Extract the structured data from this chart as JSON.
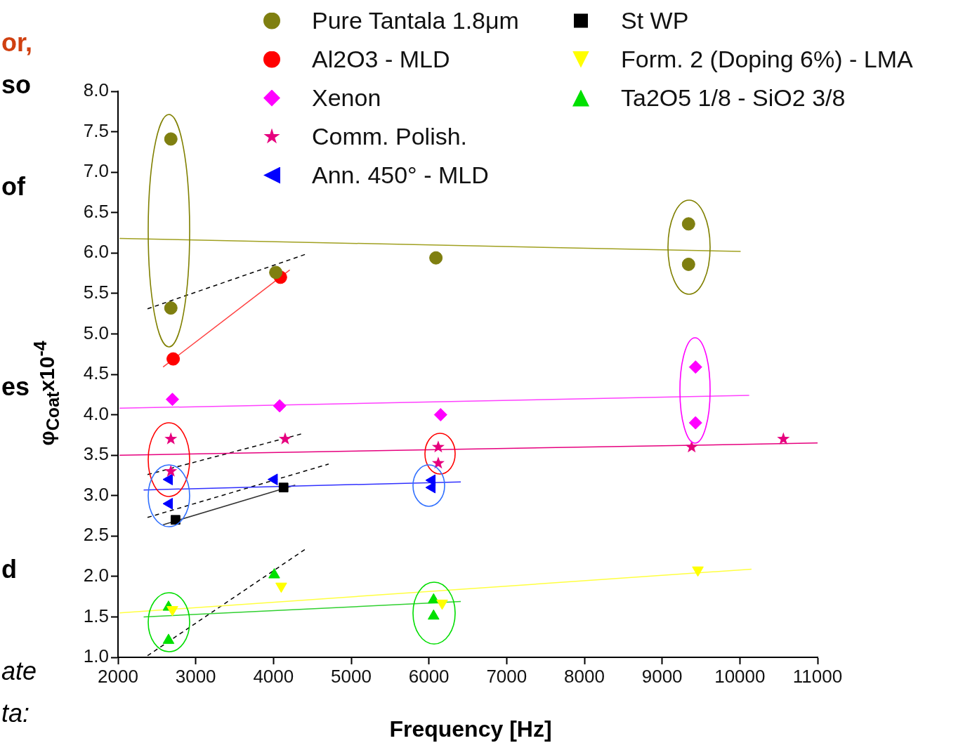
{
  "chart_data": {
    "type": "scatter",
    "xlabel": "Frequency [Hz]",
    "ylabel": "φ$_{Coat}$x10$^{-4}$",
    "xlim": [
      2000,
      11000
    ],
    "xticks": [
      2000,
      3000,
      4000,
      5000,
      6000,
      7000,
      8000,
      9000,
      10000,
      11000
    ],
    "ylim": [
      1,
      8
    ],
    "yticks": [
      {
        "value": 1,
        "label": "1.0"
      },
      {
        "value": 1.5,
        "label": "1.5"
      },
      {
        "value": 2,
        "label": "2.0"
      },
      {
        "value": 2.5,
        "label": "2.5"
      },
      {
        "value": 3,
        "label": "3.0"
      },
      {
        "value": 3.5,
        "label": "3.5"
      },
      {
        "value": 4,
        "label": "4.0"
      },
      {
        "value": 4.5,
        "label": "4.5"
      },
      {
        "value": 5,
        "label": "5.0"
      },
      {
        "value": 5.5,
        "label": "5.5"
      },
      {
        "value": 6,
        "label": "6.0"
      },
      {
        "value": 6.5,
        "label": "6.5"
      },
      {
        "value": 7,
        "label": "7.0"
      },
      {
        "value": 7.5,
        "label": "7.5"
      },
      {
        "value": 8,
        "label": "8.0"
      }
    ],
    "grid": false,
    "legend": "top",
    "annotations": [
      "or,",
      "so",
      "of",
      "es",
      "d",
      "ate",
      "ta:"
    ],
    "series": [
      {
        "name": "Pure Tantala 1.8μm",
        "marker": "circle",
        "color": "#7f7f10",
        "x": [
          2680,
          2680,
          4030,
          6090,
          9340,
          9340
        ],
        "values": [
          7.41,
          5.32,
          5.76,
          5.94,
          6.36,
          5.86
        ]
      },
      {
        "name": "Al2O3 - MLD",
        "marker": "circle",
        "color": "#ff0000",
        "x": [
          2710,
          4090
        ],
        "values": [
          4.69,
          5.7
        ]
      },
      {
        "name": "Xenon",
        "marker": "diamond",
        "color": "#ff00ff",
        "x": [
          2700,
          4080,
          6150,
          9430,
          9430
        ],
        "values": [
          4.19,
          4.11,
          4.0,
          4.59,
          3.9
        ]
      },
      {
        "name": "Comm. Polish.",
        "marker": "star",
        "color": "#e6007e",
        "x": [
          2680,
          2680,
          4150,
          6120,
          6120,
          9380,
          10560
        ],
        "values": [
          3.7,
          3.3,
          3.7,
          3.6,
          3.4,
          3.6,
          3.7
        ]
      },
      {
        "name": "Ann. 450° - MLD",
        "marker": "triangle-left",
        "color": "#0000ff",
        "x": [
          2660,
          2660,
          4010,
          6040,
          6040
        ],
        "values": [
          3.2,
          2.9,
          3.2,
          3.19,
          3.1
        ]
      },
      {
        "name": "St WP",
        "marker": "square",
        "color": "#000000",
        "x": [
          2740,
          4130
        ],
        "values": [
          2.7,
          3.1
        ]
      },
      {
        "name": "Form. 2 (Doping 6%) - LMA",
        "marker": "triangle-down",
        "color": "#ffff00",
        "x": [
          2700,
          4100,
          6170,
          9460
        ],
        "values": [
          1.59,
          1.88,
          1.67,
          2.08
        ]
      },
      {
        "name": "Ta2O5 1/8 - SiO2 3/8",
        "marker": "triangle",
        "color": "#00e000",
        "x": [
          2650,
          2650,
          4010,
          6060,
          6060
        ],
        "values": [
          1.62,
          1.21,
          2.02,
          1.71,
          1.51
        ]
      },
      {
        "type": "line",
        "marker": "none",
        "line_style": "solid",
        "color": "#a0a020",
        "x": [
          2020,
          10010
        ],
        "values": [
          6.18,
          6.02
        ]
      },
      {
        "type": "line",
        "marker": "none",
        "line_style": "solid",
        "color": "#ff4040",
        "x": [
          2580,
          4210
        ],
        "values": [
          4.59,
          5.79
        ]
      },
      {
        "type": "line",
        "marker": "none",
        "line_style": "solid",
        "color": "#ff40ff",
        "x": [
          2020,
          10120
        ],
        "values": [
          4.08,
          4.24
        ]
      },
      {
        "type": "line",
        "marker": "none",
        "line_style": "solid",
        "color": "#e6007e",
        "x": [
          2020,
          11000
        ],
        "values": [
          3.5,
          3.65
        ]
      },
      {
        "type": "line",
        "marker": "none",
        "line_style": "solid",
        "color": "#3030ff",
        "x": [
          2330,
          6410
        ],
        "values": [
          3.07,
          3.17
        ]
      },
      {
        "type": "line",
        "marker": "none",
        "line_style": "solid",
        "color": "#333333",
        "x": [
          2580,
          4280
        ],
        "values": [
          2.64,
          3.13
        ]
      },
      {
        "type": "line",
        "marker": "none",
        "line_style": "solid",
        "color": "#ffff40",
        "x": [
          2020,
          10150
        ],
        "values": [
          1.55,
          2.09
        ]
      },
      {
        "type": "line",
        "marker": "none",
        "line_style": "solid",
        "color": "#30d030",
        "x": [
          2330,
          6410
        ],
        "values": [
          1.5,
          1.69
        ]
      },
      {
        "type": "line",
        "marker": "none",
        "line_style": "dashed",
        "color": "#000000",
        "x": [
          2380,
          4430
        ],
        "values": [
          5.31,
          5.99
        ]
      },
      {
        "type": "line",
        "marker": "none",
        "line_style": "dashed",
        "color": "#000000",
        "x": [
          2380,
          4390
        ],
        "values": [
          3.26,
          3.77
        ]
      },
      {
        "type": "line",
        "marker": "none",
        "line_style": "dashed",
        "color": "#000000",
        "x": [
          2380,
          4710
        ],
        "values": [
          2.73,
          3.39
        ]
      },
      {
        "type": "line",
        "marker": "none",
        "line_style": "dashed",
        "color": "#000000",
        "x": [
          2380,
          4430
        ],
        "values": [
          1.02,
          2.35
        ]
      }
    ]
  }
}
